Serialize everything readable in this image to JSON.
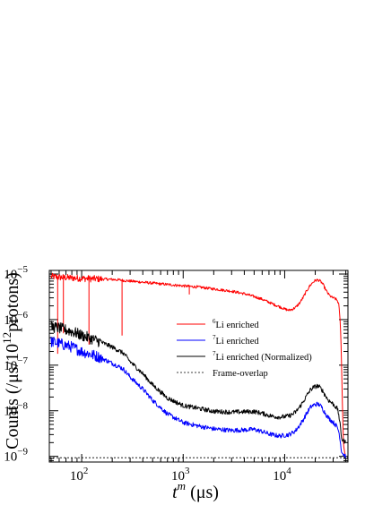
{
  "chart_data": {
    "type": "line",
    "title": "",
    "xlabel": {
      "base": "t",
      "sup": "m",
      "unit": " (μs)"
    },
    "ylabel": {
      "pre": "Counts (/μs/10",
      "sup": "12",
      "post": "protons)"
    },
    "xscale": "log",
    "yscale": "log",
    "xlim": [
      48,
      42000
    ],
    "ylim": [
      7.5e-10,
      1.2e-05
    ],
    "x_ticks": [
      {
        "value": 100,
        "base": "10",
        "exp": "2"
      },
      {
        "value": 1000,
        "base": "10",
        "exp": "3"
      },
      {
        "value": 10000,
        "base": "10",
        "exp": "4"
      }
    ],
    "y_ticks": [
      {
        "value": 1e-09,
        "base": "10",
        "exp": "−9"
      },
      {
        "value": 1e-08,
        "base": "10",
        "exp": "−8"
      },
      {
        "value": 1e-07,
        "base": "10",
        "exp": "−7"
      },
      {
        "value": 1e-06,
        "base": "10",
        "exp": "−6"
      },
      {
        "value": 1e-05,
        "base": "10",
        "exp": "−5"
      }
    ],
    "grid": false,
    "legend_position": "center-right",
    "series": [
      {
        "name": {
          "sup": "6",
          "text": "Li enriched"
        },
        "color": "#ff0000",
        "style": "solid",
        "x": [
          50,
          60,
          80,
          100,
          150,
          200,
          240,
          260,
          300,
          400,
          500,
          700,
          1000,
          1500,
          2000,
          3000,
          4000,
          5000,
          6000,
          7000,
          8000,
          9000,
          10000,
          11000,
          12000,
          13000,
          14000,
          15000,
          16000,
          17000,
          18000,
          19000,
          20000,
          21000,
          22000,
          23000,
          24000,
          25000,
          26000,
          27000,
          28000,
          29000,
          30000,
          31000,
          32000,
          33000,
          34000,
          35000,
          36000,
          37000,
          38000,
          39000,
          40000
        ],
        "y": [
          8.8e-06,
          8.5e-06,
          8.2e-06,
          8e-06,
          7.8e-06,
          7.6e-06,
          7.4e-06,
          7.2e-06,
          7e-06,
          6.6e-06,
          6.3e-06,
          5.9e-06,
          5.5e-06,
          5.1e-06,
          4.7e-06,
          4.2e-06,
          3.7e-06,
          3.2e-06,
          2.8e-06,
          2.4e-06,
          2.1e-06,
          1.9e-06,
          1.7e-06,
          1.6e-06,
          1.7e-06,
          1.9e-06,
          2.3e-06,
          2.9e-06,
          3.8e-06,
          4.8e-06,
          5.8e-06,
          6.6e-06,
          7.2e-06,
          7.4e-06,
          7.2e-06,
          6.6e-06,
          5.8e-06,
          4.8e-06,
          4.1e-06,
          3.6e-06,
          3.3e-06,
          3.1e-06,
          3e-06,
          2.9e-06,
          2.8e-06,
          2.6e-06,
          2.2e-06,
          1.2e-06,
          2.5e-07,
          1.5e-08,
          1.8e-09,
          1.2e-09,
          1.1e-09
        ]
      },
      {
        "name": {
          "sup": "7",
          "text": "Li enriched"
        },
        "color": "#0000ff",
        "style": "solid",
        "x": [
          50,
          60,
          80,
          100,
          150,
          200,
          240,
          260,
          300,
          400,
          500,
          700,
          1000,
          1500,
          2000,
          3000,
          4000,
          5000,
          6000,
          7000,
          8000,
          9000,
          10000,
          11000,
          12000,
          13000,
          14000,
          15000,
          16000,
          17000,
          18000,
          19000,
          20000,
          21000,
          22000,
          23000,
          24000,
          25000,
          26000,
          27000,
          28000,
          29000,
          30000,
          31000,
          32000,
          33000,
          34000,
          35000,
          36000,
          37000,
          38000,
          39000,
          40000
        ],
        "y": [
          3.3e-07,
          3e-07,
          2.5e-07,
          2e-07,
          1.5e-07,
          1.1e-07,
          9e-08,
          8e-08,
          5.5e-08,
          3e-08,
          1.7e-08,
          8.5e-09,
          5.5e-09,
          4.5e-09,
          4e-09,
          3.7e-09,
          3.8e-09,
          3.9e-09,
          3.5e-09,
          3.1e-09,
          2.9e-09,
          2.8e-09,
          2.9e-09,
          3e-09,
          3.3e-09,
          3.8e-09,
          4.8e-09,
          6e-09,
          7.8e-09,
          9.8e-09,
          1.2e-08,
          1.3e-08,
          1.38e-08,
          1.4e-08,
          1.35e-08,
          1.22e-08,
          1.05e-08,
          9e-09,
          7.8e-09,
          7e-09,
          6.4e-09,
          6e-09,
          5.6e-09,
          5.2e-09,
          4.8e-09,
          4.3e-09,
          3.6e-09,
          2.6e-09,
          1.4e-09,
          1.2e-09,
          1.1e-09,
          1.05e-09,
          1e-09
        ]
      },
      {
        "name": {
          "sup": "7",
          "text": "Li enriched (Normalized)"
        },
        "color": "#000000",
        "style": "solid",
        "x": [
          50,
          60,
          80,
          100,
          150,
          200,
          240,
          260,
          300,
          400,
          500,
          700,
          1000,
          1500,
          2000,
          3000,
          4000,
          5000,
          6000,
          7000,
          8000,
          9000,
          10000,
          11000,
          12000,
          13000,
          14000,
          15000,
          16000,
          17000,
          18000,
          19000,
          20000,
          21000,
          22000,
          23000,
          24000,
          25000,
          26000,
          27000,
          28000,
          29000,
          30000,
          31000,
          32000,
          33000,
          34000,
          35000,
          36000,
          37000,
          38000,
          39000,
          40000
        ],
        "y": [
          7e-07,
          6.5e-07,
          5.5e-07,
          4.5e-07,
          3.3e-07,
          2.5e-07,
          2e-07,
          1.8e-07,
          1.2e-07,
          6.5e-08,
          3.7e-08,
          1.9e-08,
          1.3e-08,
          1.1e-08,
          9.7e-09,
          9.3e-09,
          9.5e-09,
          9.6e-09,
          8.8e-09,
          7.9e-09,
          7.4e-09,
          7.3e-09,
          7.4e-09,
          7.7e-09,
          8.4e-09,
          9.7e-09,
          1.2e-08,
          1.5e-08,
          1.9e-08,
          2.4e-08,
          2.9e-08,
          3.2e-08,
          3.4e-08,
          3.5e-08,
          3.3e-08,
          3e-08,
          2.6e-08,
          2.2e-08,
          1.9e-08,
          1.7e-08,
          1.6e-08,
          1.5e-08,
          1.4e-08,
          1.3e-08,
          1.2e-08,
          1.1e-08,
          8.5e-09,
          5.5e-09,
          2.8e-09,
          2.3e-09,
          2.2e-09,
          2.1e-09,
          2e-09
        ]
      },
      {
        "name": {
          "sup": "",
          "text": "Frame-overlap"
        },
        "color": "#000000",
        "style": "dashed",
        "x": [
          48,
          42000
        ],
        "y": [
          9.3e-10,
          9.3e-10
        ]
      }
    ]
  }
}
